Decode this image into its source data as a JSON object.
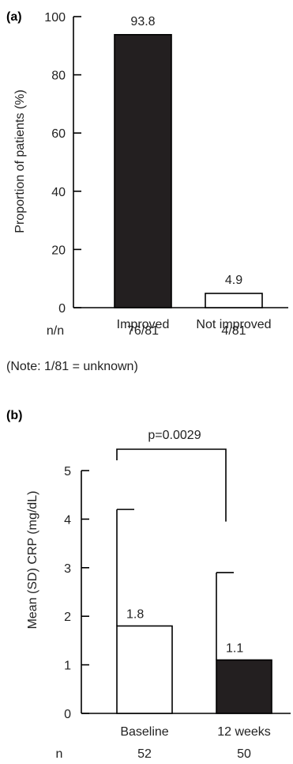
{
  "chart_data": [
    {
      "type": "bar",
      "panel_label": "(a)",
      "categories": [
        "Improved",
        "Not improved"
      ],
      "values": [
        93.8,
        4.9
      ],
      "value_labels": [
        "93.8",
        "4.9"
      ],
      "fills": [
        "#231f20",
        "#ffffff"
      ],
      "ylabel": "Proportion of patients (%)",
      "ylim": [
        0,
        100
      ],
      "yticks": [
        0,
        20,
        40,
        60,
        80,
        100
      ],
      "row_label": "n/n",
      "row_values": [
        "76/81",
        "4/81"
      ],
      "note": "(Note: 1/81 = unknown)",
      "grid": false
    },
    {
      "type": "bar",
      "panel_label": "(b)",
      "categories": [
        "Baseline",
        "12 weeks"
      ],
      "values": [
        1.8,
        1.1
      ],
      "value_labels": [
        "1.8",
        "1.1"
      ],
      "error_upper": [
        4.2,
        2.9
      ],
      "fills": [
        "#ffffff",
        "#231f20"
      ],
      "ylabel": "Mean (SD) CRP (mg/dL)",
      "ylim": [
        0,
        5
      ],
      "yticks": [
        0,
        1,
        2,
        3,
        4,
        5
      ],
      "row_label": "n",
      "row_values": [
        "52",
        "50"
      ],
      "annotation": "p=0.0029",
      "grid": false
    }
  ]
}
